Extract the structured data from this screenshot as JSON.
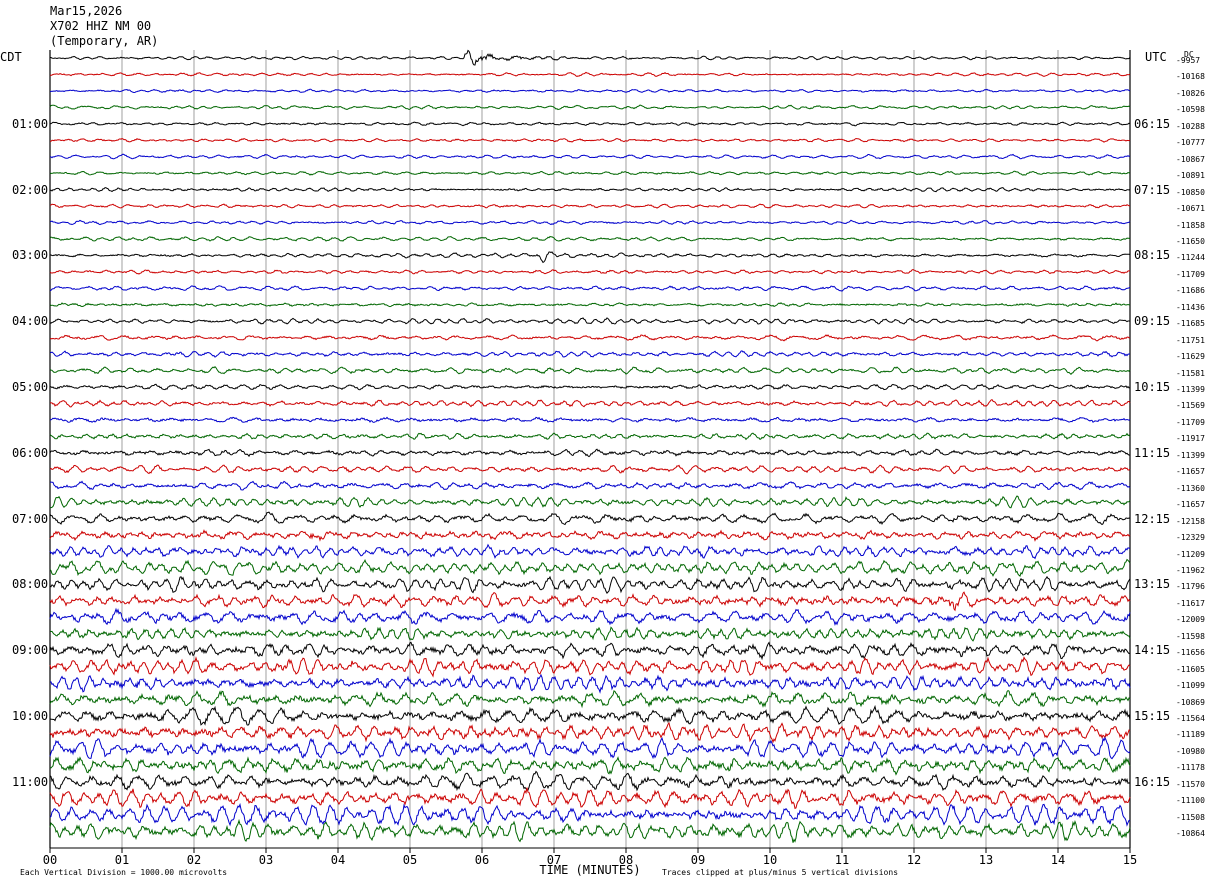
{
  "header": {
    "line1": "Mar15,2026",
    "line2": "X702 HHZ NM 00",
    "line3": "(Temporary, AR)"
  },
  "left_zone": "CDT",
  "right_zone": "UTC",
  "dc_label": "DC",
  "colors": {
    "trace_cycle": [
      "#000000",
      "#cc0000",
      "#0000cc",
      "#006600"
    ],
    "grid": "#000000"
  },
  "chart_data": {
    "type": "line",
    "title": "X702 HHZ NM 00",
    "xlabel": "TIME (MINUTES)",
    "xlim": [
      0,
      15
    ],
    "x_ticks": [
      "00",
      "01",
      "02",
      "03",
      "04",
      "05",
      "06",
      "07",
      "08",
      "09",
      "10",
      "11",
      "12",
      "13",
      "14",
      "15"
    ],
    "rows_per_hour": 4,
    "minutes_per_row": 15,
    "left_hour_labels": [
      "01:00",
      "02:00",
      "03:00",
      "04:00",
      "05:00",
      "06:00",
      "07:00",
      "08:00",
      "09:00",
      "10:00",
      "11:00"
    ],
    "right_hour_labels": [
      "06:15",
      "07:15",
      "08:15",
      "09:15",
      "10:15",
      "11:15",
      "12:15",
      "13:15",
      "14:15",
      "15:15",
      "16:15"
    ],
    "dc_offsets": [
      "-9957",
      "-10168",
      "-10826",
      "-10598",
      "-10288",
      "-10777",
      "-10867",
      "-10891",
      "-10850",
      "-10671",
      "-11858",
      "-11650",
      "-11244",
      "-11709",
      "-11686",
      "-11436",
      "-11685",
      "-11751",
      "-11629",
      "-11581",
      "-11399",
      "-11569",
      "-11709",
      "-11917",
      "-11399",
      "-11657",
      "-11360",
      "-11657",
      "-12158",
      "-12329",
      "-11209",
      "-11962",
      "-11796",
      "-11617",
      "-12009",
      "-11598",
      "-11656",
      "-11605",
      "-11099",
      "-10869",
      "-11564",
      "-11189",
      "-10980",
      "-11178",
      "-11570",
      "-11100",
      "-11508",
      "-10864"
    ],
    "amplitude_envelope_per_row": [
      0.5,
      0.5,
      0.5,
      0.5,
      0.55,
      0.55,
      0.55,
      0.55,
      0.6,
      0.6,
      0.6,
      0.6,
      0.65,
      0.65,
      0.7,
      0.7,
      0.75,
      0.8,
      0.85,
      0.85,
      0.9,
      0.95,
      1.0,
      1.0,
      1.1,
      1.1,
      1.2,
      1.3,
      1.5,
      1.7,
      1.8,
      1.8,
      2.0,
      2.1,
      2.2,
      2.2,
      2.3,
      2.4,
      2.5,
      2.5,
      2.6,
      2.6,
      2.6,
      2.6,
      2.6,
      2.6,
      2.6,
      2.6
    ],
    "events": [
      {
        "row": 0,
        "minute_start": 5.75,
        "minute_end": 7.2,
        "label": ""
      },
      {
        "row": 12,
        "minute_start": 6.8,
        "minute_end": 7.05,
        "label": ""
      },
      {
        "row": 29,
        "minute_start": 3.6,
        "minute_end": 3.9,
        "label": ""
      },
      {
        "row": 33,
        "minute_start": 12.5,
        "minute_end": 12.9,
        "label": ""
      }
    ]
  },
  "footer": {
    "scale_note": "Each Vertical Division = 1000.00 microvolts",
    "clip_note": "Traces clipped at plus/minus 5 vertical divisions"
  }
}
